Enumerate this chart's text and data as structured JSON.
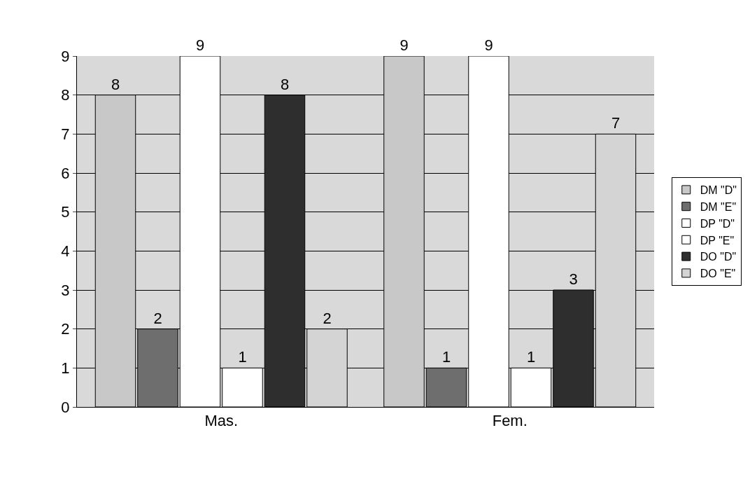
{
  "chart_data": {
    "type": "bar",
    "categories": [
      "Mas.",
      "Fem."
    ],
    "series": [
      {
        "name": "DM \"D\"",
        "color": "#c8c8c8",
        "values": [
          8,
          9
        ]
      },
      {
        "name": "DM \"E\"",
        "color": "#6e6e6e",
        "values": [
          2,
          1
        ]
      },
      {
        "name": "DP \"D\"",
        "color": "#ffffff",
        "values": [
          9,
          9
        ]
      },
      {
        "name": "DP \"E\"",
        "color": "#ffffff",
        "values": [
          1,
          1
        ]
      },
      {
        "name": "DO \"D\"",
        "color": "#2e2e2e",
        "values": [
          8,
          3
        ]
      },
      {
        "name": "DO \"E\"",
        "color": "#d4d4d4",
        "values": [
          2,
          7
        ]
      }
    ],
    "ylim": [
      0,
      9
    ],
    "yticks": [
      0,
      1,
      2,
      3,
      4,
      5,
      6,
      7,
      8,
      9
    ],
    "grid": "y",
    "legend": "right",
    "data_labels": true
  }
}
